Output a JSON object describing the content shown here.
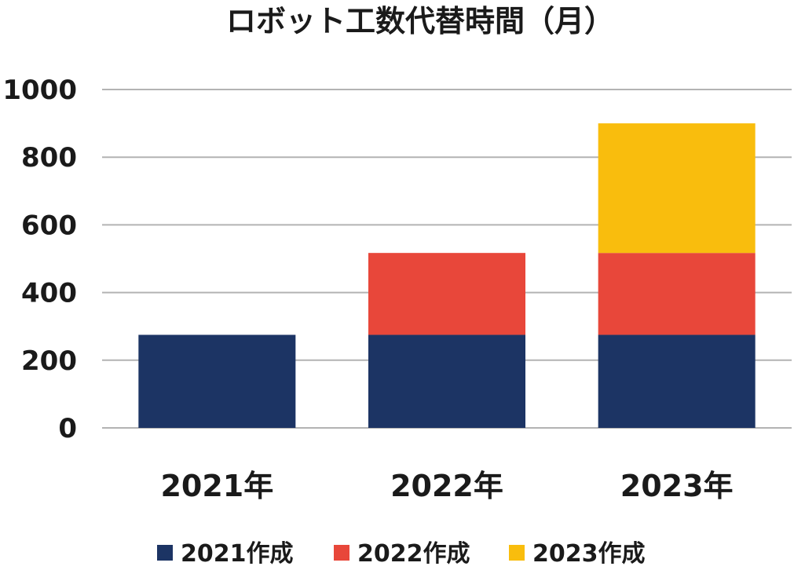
{
  "chart_data": {
    "type": "bar",
    "stacked": true,
    "title": "ロボット工数代替時間（月）",
    "categories": [
      "2021年",
      "2022年",
      "2023年"
    ],
    "series": [
      {
        "name": "2021作成",
        "color": "#1c3464",
        "values": [
          275,
          275,
          275
        ]
      },
      {
        "name": "2022作成",
        "color": "#e8473a",
        "values": [
          0,
          242,
          242
        ]
      },
      {
        "name": "2023作成",
        "color": "#f9bd0d",
        "values": [
          0,
          0,
          383
        ]
      }
    ],
    "yticks": [
      "0",
      "200",
      "400",
      "600",
      "800",
      "1000"
    ],
    "ylim": [
      0,
      1000
    ],
    "grid": true,
    "legend_position": "bottom"
  }
}
